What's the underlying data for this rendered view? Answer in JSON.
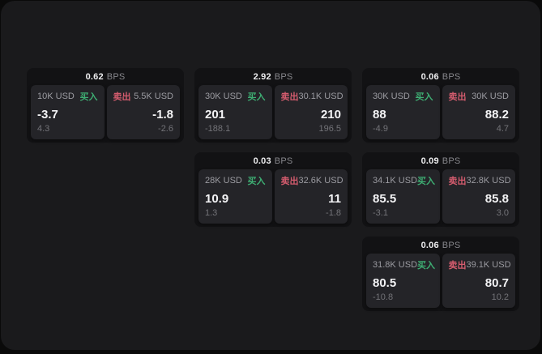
{
  "page": {
    "surface_color": "#1a1a1c",
    "card_color": "#121214",
    "panel_color": "#242428",
    "accent_green": "#3eae73",
    "accent_red": "#d45c6e",
    "bps_unit": "BPS",
    "buy_label": "买入",
    "sell_label": "卖出"
  },
  "cards": [
    {
      "row": 1,
      "col": 1,
      "bps": "0.62",
      "buy": {
        "size": "10K USD",
        "price": "-3.7",
        "delta": "4.3"
      },
      "sell": {
        "size": "5.5K USD",
        "price": "-1.8",
        "delta": "-2.6"
      }
    },
    {
      "row": 1,
      "col": 2,
      "bps": "2.92",
      "buy": {
        "size": "30K USD",
        "price": "201",
        "delta": "-188.1"
      },
      "sell": {
        "size": "30.1K USD",
        "price": "210",
        "delta": "196.5"
      }
    },
    {
      "row": 1,
      "col": 3,
      "bps": "0.06",
      "buy": {
        "size": "30K USD",
        "price": "88",
        "delta": "-4.9"
      },
      "sell": {
        "size": "30K USD",
        "price": "88.2",
        "delta": "4.7"
      }
    },
    {
      "row": 2,
      "col": 2,
      "bps": "0.03",
      "buy": {
        "size": "28K USD",
        "price": "10.9",
        "delta": "1.3"
      },
      "sell": {
        "size": "32.6K USD",
        "price": "11",
        "delta": "-1.8"
      }
    },
    {
      "row": 2,
      "col": 3,
      "bps": "0.09",
      "buy": {
        "size": "34.1K USD",
        "price": "85.5",
        "delta": "-3.1"
      },
      "sell": {
        "size": "32.8K USD",
        "price": "85.8",
        "delta": "3.0"
      }
    },
    {
      "row": 3,
      "col": 3,
      "bps": "0.06",
      "buy": {
        "size": "31.8K USD",
        "price": "80.5",
        "delta": "-10.8"
      },
      "sell": {
        "size": "39.1K USD",
        "price": "80.7",
        "delta": "10.2"
      }
    }
  ]
}
